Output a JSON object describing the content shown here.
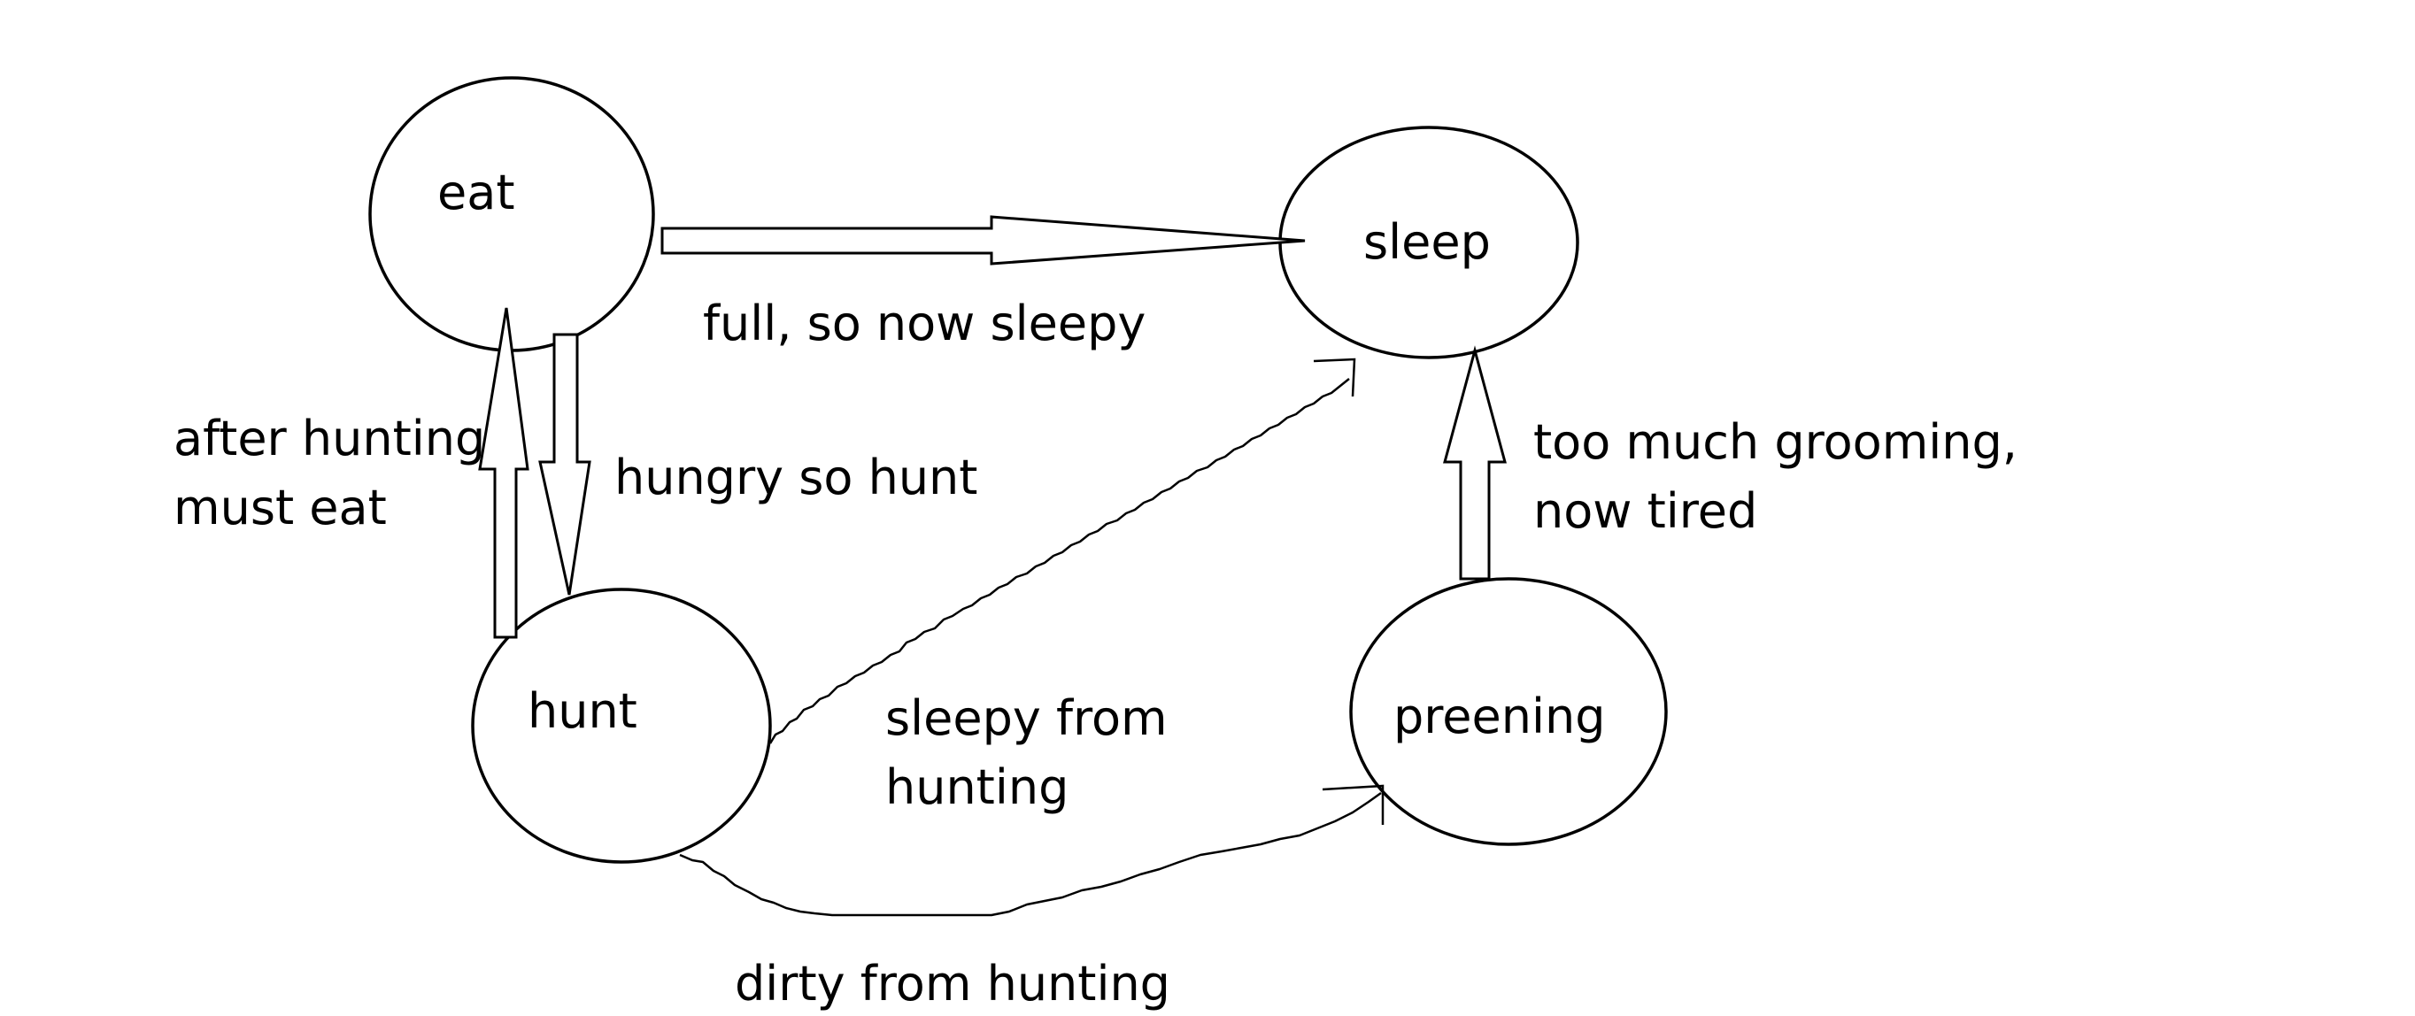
{
  "states": {
    "eat": "eat",
    "sleep": "sleep",
    "hunt": "hunt",
    "preening": "preening"
  },
  "transitions": {
    "eat_to_sleep": "full, so now sleepy",
    "hunt_to_eat": [
      "after hunting",
      "must eat"
    ],
    "eat_to_hunt": "hungry so hunt",
    "preening_to_sleep": [
      "too much grooming,",
      "now tired"
    ],
    "hunt_to_sleep": [
      "sleepy from",
      "hunting"
    ],
    "hunt_to_preening": "dirty from hunting"
  }
}
